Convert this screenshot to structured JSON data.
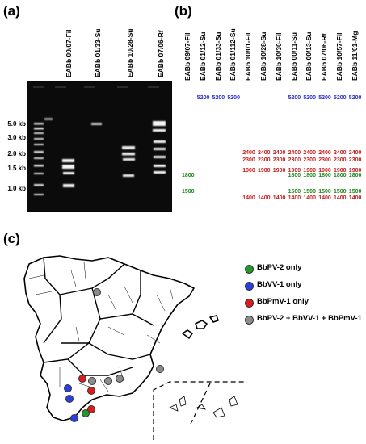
{
  "panels": {
    "a": "(a)",
    "b": "(b)",
    "c": "(c)"
  },
  "gel": {
    "size_markers": [
      "5.0 kb",
      "3.0 kb",
      "2.0 kb",
      "1.5 kb",
      "1.0 kb"
    ],
    "lane_labels": [
      "EABb 09/07-Fil",
      "EABb 01/33-Su",
      "EABb 10/28-Su",
      "EABb 07/06-Rf"
    ]
  },
  "table": {
    "columns": [
      "EABb 09/07-Fil",
      "EABb 01/12-Su",
      "EABb 01/33-Su",
      "EABb 01/112-Su",
      "EABb 10/01-Fil",
      "EABb 10/28-Su",
      "EABb 10/30-Fil",
      "EABb 00/11-Su",
      "EABb 00/13-Su",
      "EABb 07/06-Rf",
      "EABb 10/57-Fil",
      "EABb 11/01-Mg"
    ],
    "colors": {
      "blue": "#2b2bd6",
      "red": "#c81e1e",
      "green": "#1a8a1a"
    },
    "rows": [
      {
        "color": "blue",
        "cells": [
          "",
          "5200",
          "5200",
          "5200",
          "",
          "",
          "",
          "5200",
          "5200",
          "5200",
          "5200",
          "5200"
        ]
      },
      {
        "color": "red",
        "cells": [
          "",
          "",
          "",
          "",
          "2400",
          "2400",
          "2400",
          "2400",
          "2400",
          "2400",
          "2400",
          "2400"
        ]
      },
      {
        "color": "red",
        "cells": [
          "",
          "",
          "",
          "",
          "2300",
          "2300",
          "2300",
          "2300",
          "2300",
          "2300",
          "2300",
          "2300"
        ]
      },
      {
        "color": "red",
        "cells": [
          "",
          "",
          "",
          "",
          "1900",
          "1900",
          "1900",
          "1900",
          "1900",
          "1900",
          "1900",
          "1900"
        ]
      },
      {
        "color": "green",
        "cells": [
          "1800",
          "",
          "",
          "",
          "",
          "",
          "",
          "1800",
          "1800",
          "1800",
          "1800",
          "1800"
        ]
      },
      {
        "color": "green",
        "cells": [
          "1500",
          "",
          "",
          "",
          "",
          "",
          "",
          "1500",
          "1500",
          "1500",
          "1500",
          "1500"
        ]
      },
      {
        "color": "red",
        "cells": [
          "",
          "",
          "",
          "",
          "1400",
          "1400",
          "1400",
          "1400",
          "1400",
          "1400",
          "1400",
          "1400"
        ]
      }
    ]
  },
  "legend": {
    "items": [
      {
        "label": "BbPV-2 only",
        "color": "#1f9a2a"
      },
      {
        "label": "BbVV-1 only",
        "color": "#2b3fe0"
      },
      {
        "label": "BbPmV-1 only",
        "color": "#d91c1c"
      },
      {
        "label": "BbPV-2 + BbVV-1 + BbPmV-1",
        "color": "#8c8c8c"
      }
    ]
  }
}
